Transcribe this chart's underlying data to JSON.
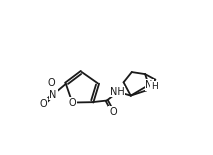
{
  "bg_color": "#ffffff",
  "line_color": "#1a1a1a",
  "lw": 1.3,
  "fs": 7.0,
  "fig_width": 2.13,
  "fig_height": 1.55,
  "xlim": [
    0.0,
    10.0
  ],
  "ylim": [
    0.0,
    7.5
  ]
}
